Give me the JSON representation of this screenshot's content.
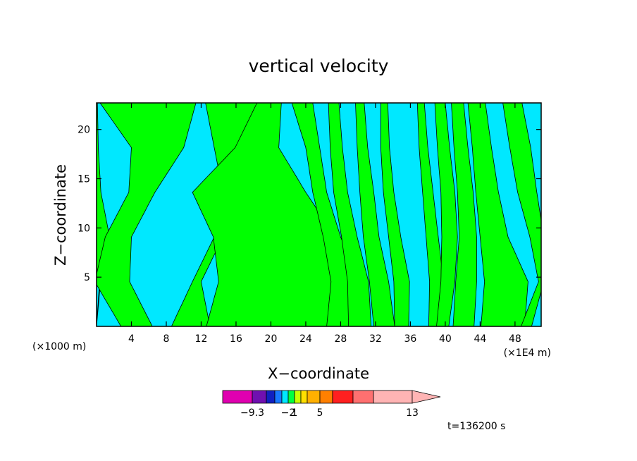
{
  "chart_data": {
    "type": "heatmap",
    "title": "vertical velocity",
    "xlabel": "X−coordinate",
    "ylabel": "Z−coordinate",
    "x_unit_note_left": "(×1000 m)",
    "x_unit_note_right": "(×1E4 m)",
    "x_ticks": [
      4,
      8,
      12,
      16,
      20,
      24,
      28,
      32,
      36,
      40,
      44,
      48
    ],
    "y_ticks": [
      5,
      10,
      15,
      20
    ],
    "xlim": [
      0,
      51
    ],
    "ylim": [
      0,
      22.7
    ],
    "time_label": "t=136200 s",
    "colorbar": {
      "colors": [
        "#e000b0",
        "#7010b0",
        "#1020c0",
        "#1878ff",
        "#00e8ff",
        "#00ff40",
        "#c8ff00",
        "#ffe000",
        "#ffb000",
        "#ff8000",
        "#ff2020",
        "#ff7070",
        "#ffb4b4",
        "#ffb4b4"
      ],
      "tick_labels": [
        {
          "text": "−9.3",
          "at_edge": 1
        },
        {
          "text": "−2",
          "at_edge": 5
        },
        {
          "text": "1",
          "at_edge": 6
        },
        {
          "text": "5",
          "at_edge": 9
        },
        {
          "text": "13",
          "at_edge": 13
        }
      ]
    },
    "field_colors": {
      "positive": "#00ff00",
      "negative": "#00e8ff"
    },
    "positive_bands": [
      {
        "z0": 0,
        "z1": 22.7,
        "x": [
          0,
          0.4,
          0.2,
          0.1,
          0,
          0
        ],
        "w": [
          0,
          0.05,
          1.3,
          0.4,
          0.2,
          0.1
        ]
      },
      {
        "z0": 0,
        "z1": 22.7,
        "x": [
          4.6,
          1.8,
          2.5,
          5.2,
          7.0,
          5.9
        ],
        "w": [
          1.8,
          2.0,
          1.5,
          1.5,
          3.0,
          5.5
        ]
      },
      {
        "z0": 0,
        "z1": 22.7,
        "x": [
          10.8,
          11.5,
          14.0,
          16.0,
          16.0,
          15.5
        ],
        "w": [
          2.2,
          0.5,
          0.5,
          1.5,
          2.5,
          3.0
        ]
      },
      {
        "z0": 0,
        "z1": 22.7,
        "x": [
          20.6,
          21.0,
          20.4,
          17.5,
          18.4,
          19.8
        ],
        "w": [
          8.0,
          7.0,
          7.0,
          6.5,
          2.5,
          1.4
        ]
      },
      {
        "z0": 0,
        "z1": 22.7,
        "x": [
          28.3,
          28.5,
          27.0,
          25.6,
          24.8,
          23.6
        ],
        "w": [
          1.9,
          1.6,
          1.0,
          0.8,
          0.8,
          1.2
        ]
      },
      {
        "z0": 0,
        "z1": 22.7,
        "x": [
          30.2,
          30.0,
          29.0,
          28.0,
          27.5,
          27.2
        ],
        "w": [
          1.3,
          1.2,
          0.9,
          0.8,
          0.7,
          0.6
        ]
      },
      {
        "z0": 0,
        "z1": 22.7,
        "x": [
          33.0,
          32.4,
          31.5,
          31.0,
          30.5,
          30.2
        ],
        "w": [
          1.2,
          1.1,
          0.9,
          0.8,
          0.6,
          0.5
        ]
      },
      {
        "z0": 0,
        "z1": 22.7,
        "x": [
          35.0,
          35.0,
          34.2,
          33.5,
          33.1,
          33.0
        ],
        "w": [
          0.8,
          0.9,
          0.7,
          0.6,
          0.5,
          0.4
        ]
      },
      {
        "z0": 0,
        "z1": 22.7,
        "x": [
          38.8,
          39.0,
          38.5,
          38.0,
          37.5,
          37.2
        ],
        "w": [
          0.7,
          0.8,
          0.7,
          0.6,
          0.5,
          0.4
        ]
      },
      {
        "z0": 0,
        "z1": 22.7,
        "x": [
          39.7,
          40.3,
          40.5,
          40.3,
          39.8,
          39.4
        ],
        "w": [
          0.7,
          0.8,
          0.9,
          0.8,
          0.7,
          0.6
        ]
      },
      {
        "z0": 0,
        "z1": 22.7,
        "x": [
          42.1,
          42.4,
          42.6,
          42.3,
          41.8,
          41.4
        ],
        "w": [
          1.2,
          1.2,
          1.0,
          0.9,
          0.8,
          0.7
        ]
      },
      {
        "z0": 0,
        "z1": 22.7,
        "x": [
          46.6,
          47.0,
          45.6,
          44.8,
          44.2,
          43.6
        ],
        "w": [
          2.5,
          2.5,
          1.6,
          1.3,
          1.1,
          1.0
        ]
      },
      {
        "z0": 0,
        "z1": 22.7,
        "x": [
          49.3,
          51.0,
          50.5,
          49.4,
          48.6,
          47.7
        ],
        "w": [
          0.6,
          0.3,
          0.8,
          1.1,
          1.2,
          1.1
        ]
      }
    ]
  }
}
